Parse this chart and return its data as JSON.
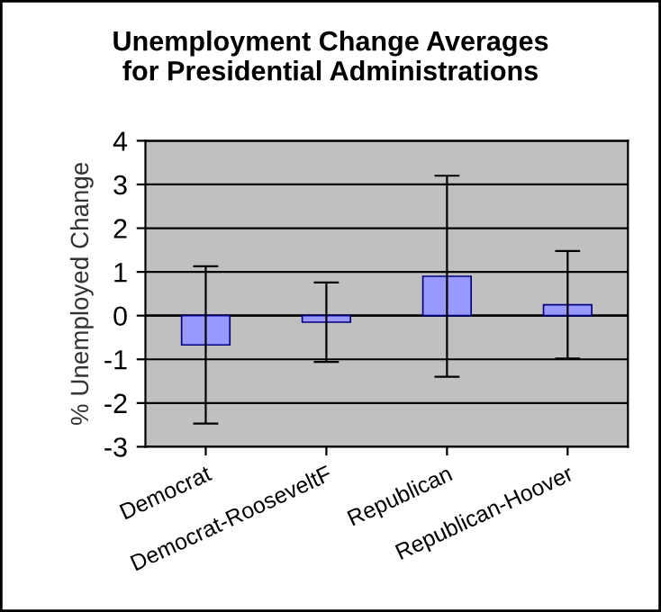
{
  "chart_data": {
    "type": "bar",
    "title": "Unemployment Change Averages\nfor Presidential Administrations",
    "ylabel": "% Unemployed Change",
    "categories": [
      "Democrat",
      "Democrat-RooseveltF",
      "Republican",
      "Republican-Hoover"
    ],
    "values": [
      -0.67,
      -0.15,
      0.9,
      0.25
    ],
    "errors": [
      1.8,
      0.91,
      2.3,
      1.23
    ],
    "color": "#9999ff",
    "ylim": [
      -3,
      4
    ],
    "yticks": [
      -3,
      -2,
      -1,
      0,
      1,
      2,
      3,
      4
    ],
    "grid": "y"
  }
}
